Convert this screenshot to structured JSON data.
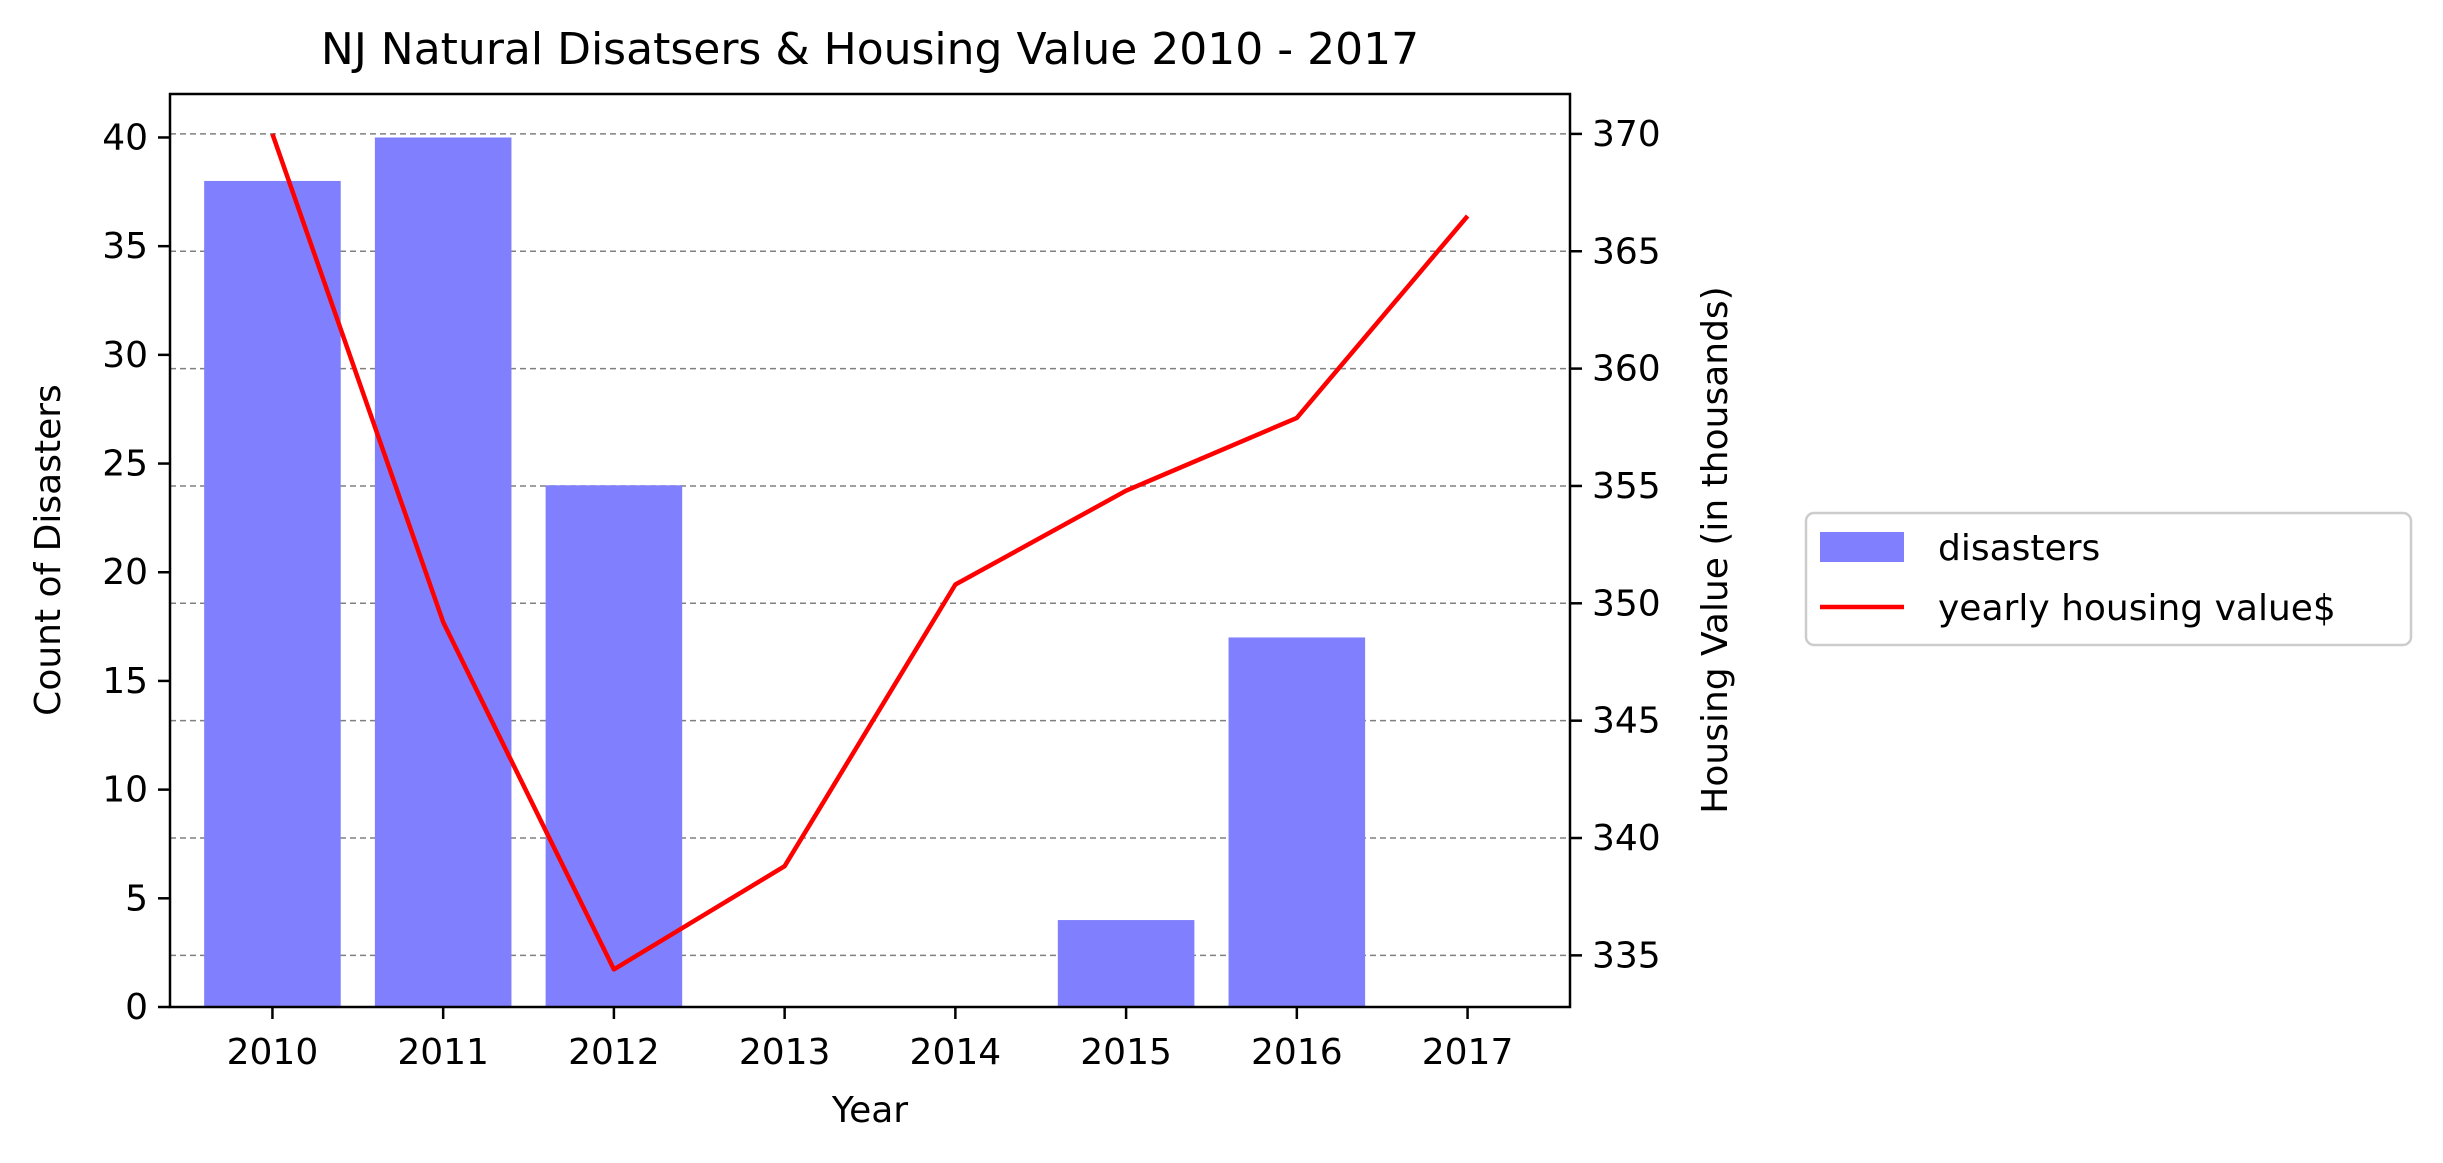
{
  "chart_data": {
    "type": "bar",
    "title": "NJ Natural Disatsers & Housing Value 2010 - 2017",
    "xlabel": "Year",
    "ylabel": "Count of Disasters",
    "y2label": "Housing Value (in thousands)",
    "categories": [
      "2010",
      "2011",
      "2012",
      "2013",
      "2014",
      "2015",
      "2016",
      "2017"
    ],
    "ylim": [
      0,
      42
    ],
    "yticks": [
      0,
      5,
      10,
      15,
      20,
      25,
      30,
      35,
      40
    ],
    "y2lim": [
      332.8,
      371.7
    ],
    "y2ticks": [
      335,
      340,
      345,
      350,
      355,
      360,
      365,
      370
    ],
    "grid": "horizontal dashed on secondary axis",
    "legend_position": "center-right outside",
    "series": [
      {
        "name": "disasters",
        "type": "bar",
        "axis": "left",
        "color": "#8080ff",
        "values": [
          38,
          40,
          24,
          0,
          0,
          4,
          17,
          0
        ]
      },
      {
        "name": "yearly housing value$",
        "type": "line",
        "axis": "right",
        "color": "#ff0000",
        "values": [
          370.0,
          349.2,
          334.4,
          338.8,
          350.8,
          354.8,
          357.9,
          366.5
        ]
      }
    ]
  }
}
